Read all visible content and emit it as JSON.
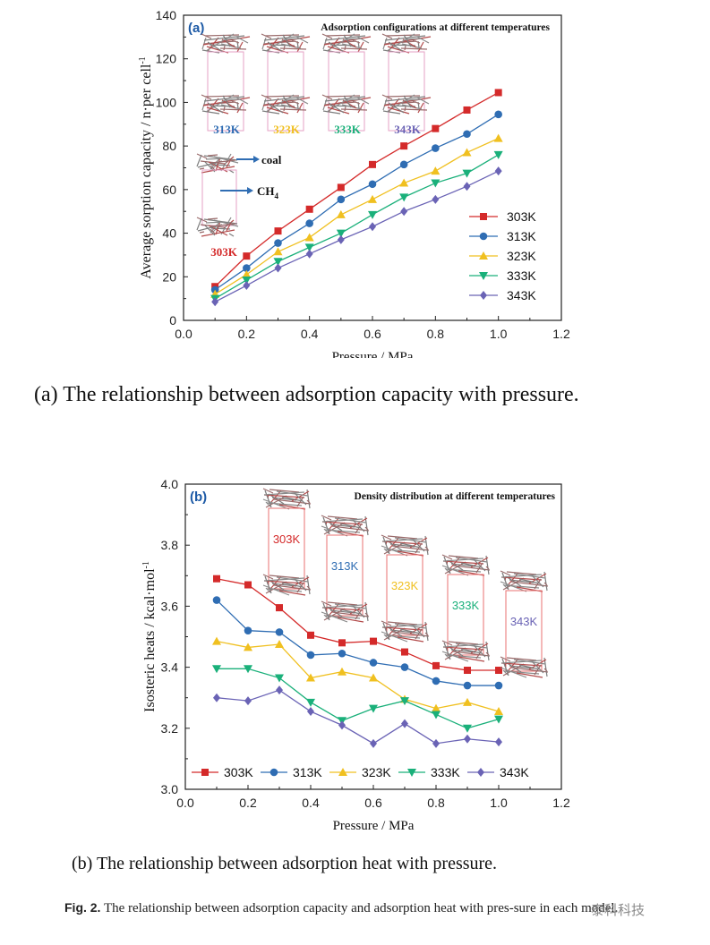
{
  "chart_data": [
    {
      "type": "line",
      "panel_label": "(a)",
      "title": "Adsorption configurations at different temperatures",
      "xlabel": "Pressure / MPa",
      "ylabel": "Average sorption capacity / n·per cell",
      "ylabel_superscript": "-1",
      "xlim": [
        0.0,
        1.2
      ],
      "ylim": [
        0,
        140
      ],
      "xticks": [
        "0.0",
        "0.2",
        "0.4",
        "0.6",
        "0.8",
        "1.0",
        "1.2"
      ],
      "yticks": [
        "0",
        "20",
        "40",
        "60",
        "80",
        "100",
        "120",
        "140"
      ],
      "legend_position": "lower-right",
      "x": [
        0.1,
        0.2,
        0.3,
        0.4,
        0.5,
        0.6,
        0.7,
        0.8,
        0.9,
        1.0
      ],
      "series": [
        {
          "name": "303K",
          "color": "#d42a2a",
          "marker": "square",
          "values": [
            15.5,
            29.5,
            41,
            51,
            61,
            71.5,
            80,
            88,
            96.5,
            104.5
          ]
        },
        {
          "name": "313K",
          "color": "#2f6db3",
          "marker": "circle",
          "values": [
            14,
            24,
            35.5,
            44.5,
            55.5,
            62.5,
            71.5,
            79,
            85.5,
            94.5
          ]
        },
        {
          "name": "323K",
          "color": "#f0c020",
          "marker": "triangle-up",
          "values": [
            12,
            21,
            31.5,
            38,
            48.5,
            55.5,
            63,
            68.5,
            77,
            83.5
          ]
        },
        {
          "name": "333K",
          "color": "#1ab07a",
          "marker": "triangle-down",
          "values": [
            10,
            18.5,
            27,
            33.5,
            40,
            48.5,
            56.5,
            63,
            67.5,
            76
          ]
        },
        {
          "name": "343K",
          "color": "#6a63b5",
          "marker": "diamond",
          "values": [
            8.5,
            16,
            24,
            30.5,
            37,
            43,
            50,
            55.5,
            61.5,
            68.5
          ]
        }
      ],
      "annotations": {
        "inset_temps": [
          {
            "label": "313K",
            "color": "#2f6db3"
          },
          {
            "label": "323K",
            "color": "#f0c020"
          },
          {
            "label": "333K",
            "color": "#1ab07a"
          },
          {
            "label": "343K",
            "color": "#6a63b5"
          }
        ],
        "inset_303": {
          "label": "303K",
          "color": "#d42a2a"
        },
        "coal_label": "coal",
        "ch4_label": "CH",
        "ch4_sub": "4"
      }
    },
    {
      "type": "line",
      "panel_label": "(b)",
      "title": "Density distribution at different temperatures",
      "xlabel": "Pressure / MPa",
      "ylabel": "Isosteric heats / kcal·mol",
      "ylabel_superscript": "-1",
      "xlim": [
        0.0,
        1.2
      ],
      "ylim": [
        3.0,
        4.0
      ],
      "xticks": [
        "0.0",
        "0.2",
        "0.4",
        "0.6",
        "0.8",
        "1.0",
        "1.2"
      ],
      "yticks": [
        "3.0",
        "3.2",
        "3.4",
        "3.6",
        "3.8",
        "4.0"
      ],
      "legend_position": "bottom",
      "x": [
        0.1,
        0.2,
        0.3,
        0.4,
        0.5,
        0.6,
        0.7,
        0.8,
        0.9,
        1.0
      ],
      "series": [
        {
          "name": "303K",
          "color": "#d42a2a",
          "marker": "square",
          "values": [
            3.69,
            3.67,
            3.595,
            3.505,
            3.48,
            3.485,
            3.45,
            3.405,
            3.39,
            3.39
          ]
        },
        {
          "name": "313K",
          "color": "#2f6db3",
          "marker": "circle",
          "values": [
            3.62,
            3.52,
            3.515,
            3.44,
            3.445,
            3.415,
            3.4,
            3.355,
            3.34,
            3.34
          ]
        },
        {
          "name": "323K",
          "color": "#f0c020",
          "marker": "triangle-up",
          "values": [
            3.485,
            3.465,
            3.475,
            3.365,
            3.385,
            3.365,
            3.295,
            3.265,
            3.285,
            3.255
          ]
        },
        {
          "name": "333K",
          "color": "#1ab07a",
          "marker": "triangle-down",
          "values": [
            3.395,
            3.395,
            3.365,
            3.285,
            3.225,
            3.265,
            3.29,
            3.245,
            3.2,
            3.23
          ]
        },
        {
          "name": "343K",
          "color": "#6a63b5",
          "marker": "diamond",
          "values": [
            3.3,
            3.29,
            3.325,
            3.255,
            3.21,
            3.15,
            3.215,
            3.15,
            3.165,
            3.155
          ]
        }
      ],
      "annotations": {
        "inset_temps": [
          {
            "label": "303K",
            "color": "#d42a2a"
          },
          {
            "label": "313K",
            "color": "#2f6db3"
          },
          {
            "label": "323K",
            "color": "#f0c020"
          },
          {
            "label": "333K",
            "color": "#1ab07a"
          },
          {
            "label": "343K",
            "color": "#6a63b5"
          }
        ]
      }
    }
  ],
  "captions": {
    "a": "(a) The relationship between adsorption capacity with pressure.",
    "b": "(b) The relationship between adsorption heat with pressure.",
    "fig_label": "Fig. 2.",
    "fig_text": "The relationship between adsorption capacity and adsorption heat with pres-sure in each model.",
    "watermark": "泰科科技"
  }
}
